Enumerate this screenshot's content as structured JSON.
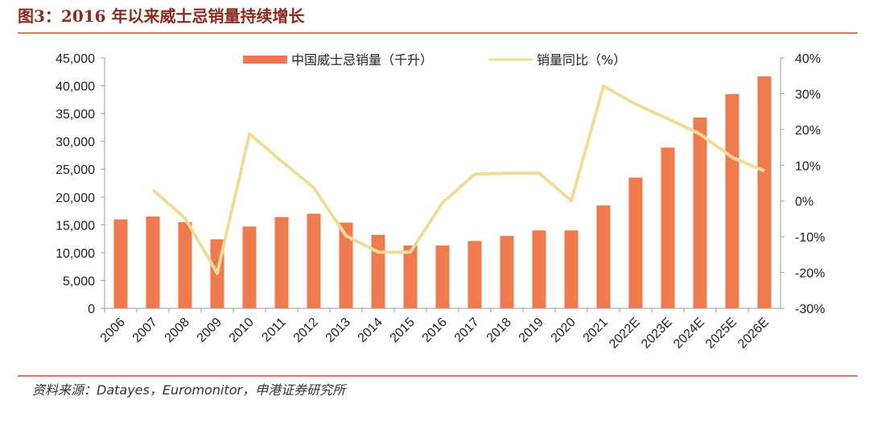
{
  "header": {
    "title": "图3：2016 年以来威士忌销量持续增长"
  },
  "footer": {
    "source": "资料来源：Datayes，Euromonitor，申港证券研究所"
  },
  "colors": {
    "bar": "#ee7a4e",
    "line": "#f0dc96",
    "title": "#8a2b1d",
    "rule": "#c9805c"
  },
  "chart_data": {
    "type": "bar",
    "categories": [
      "2006",
      "2007",
      "2008",
      "2009",
      "2010",
      "2011",
      "2012",
      "2013",
      "2014",
      "2015",
      "2016",
      "2017",
      "2018",
      "2019",
      "2020",
      "2021",
      "2022E",
      "2023E",
      "2024E",
      "2025E",
      "2026E"
    ],
    "series": [
      {
        "name": "中国威士忌销量（千升）",
        "type": "bar",
        "axis": "left",
        "values": [
          16000,
          16500,
          15500,
          12400,
          14700,
          16400,
          17000,
          15400,
          13200,
          11300,
          11300,
          12100,
          13000,
          14000,
          14000,
          18500,
          23500,
          28900,
          34300,
          38500,
          41700
        ]
      },
      {
        "name": "销量同比（%）",
        "type": "line",
        "axis": "right",
        "values": [
          null,
          3.1,
          -4.8,
          -20.2,
          18.8,
          11.1,
          3.7,
          -9.7,
          -14.3,
          -14.3,
          -0.5,
          7.5,
          7.8,
          7.8,
          0.1,
          32.1,
          27.1,
          23.0,
          18.7,
          12.2,
          8.4
        ]
      }
    ],
    "y_left": {
      "lim": [
        0,
        45000
      ],
      "ticks": [
        "0",
        "5,000",
        "10,000",
        "15,000",
        "20,000",
        "25,000",
        "30,000",
        "35,000",
        "40,000",
        "45,000"
      ]
    },
    "y_right": {
      "lim": [
        -30,
        40
      ],
      "ticks": [
        "-30%",
        "-20%",
        "-10%",
        "0%",
        "10%",
        "20%",
        "30%",
        "40%"
      ]
    },
    "legend_position": "top-center",
    "grid": false
  }
}
